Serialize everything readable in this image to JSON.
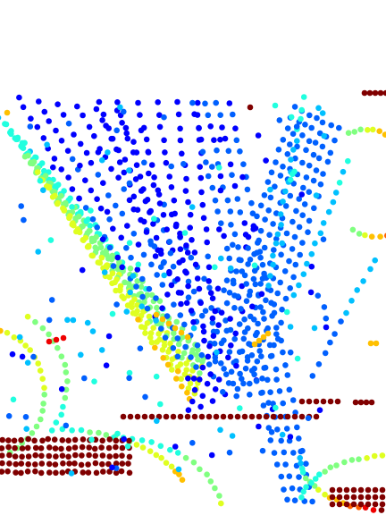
{
  "scene": {
    "background": "#ffffff",
    "colormap": [
      "#00008f",
      "#0000ff",
      "#0060ff",
      "#00c0ff",
      "#20ffdf",
      "#80ff80",
      "#dfff20",
      "#ffc000",
      "#ff6000",
      "#ef0000",
      "#800000"
    ],
    "description_shape": "scattered point-cloud strokes rendered as dots colored by a jet colormap"
  }
}
